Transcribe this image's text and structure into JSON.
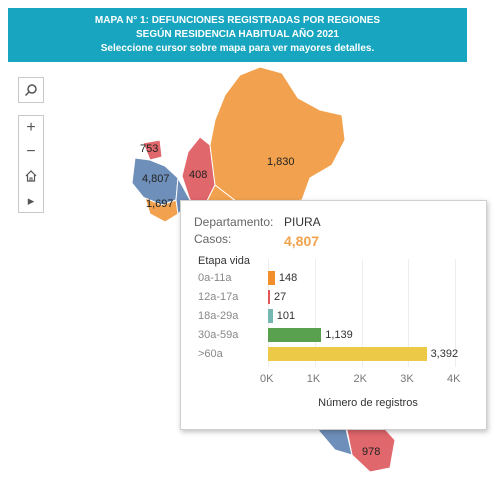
{
  "header": {
    "line1": "MAPA N° 1:  DEFUNCIONES REGISTRADAS  POR REGIONES",
    "line2": "SEGÚN RESIDENCIA HABITUAL  AÑO 2021",
    "line3": "Seleccione cursor sobre mapa para ver mayores detalles."
  },
  "toolbar": {
    "search_icon": "search-icon",
    "zoom_in_icon": "plus-icon",
    "zoom_out_icon": "minus-icon",
    "home_icon": "home-icon",
    "play_icon": "play-icon",
    "zoom_in": "+",
    "zoom_out": "−",
    "play": "▸"
  },
  "map": {
    "labels": [
      "753",
      "4,807",
      "1,697",
      "408",
      "1,830",
      "978"
    ],
    "colors": {
      "orange": "#f2a24e",
      "blue": "#6e8fba",
      "red": "#e0676c"
    }
  },
  "tooltip": {
    "dept_label": "Departamento:",
    "dept_value": "PIURA",
    "cases_label": "Casos:",
    "cases_value": "4,807",
    "subtitle": "Etapa vida"
  },
  "chart_data": {
    "type": "bar",
    "orientation": "horizontal",
    "categories": [
      "0a-11a",
      "12a-17a",
      "18a-29a",
      "30a-59a",
      ">60a"
    ],
    "values": [
      148,
      27,
      101,
      1139,
      3392
    ],
    "value_labels": [
      "148",
      "27",
      "101",
      "1,139",
      "3,392"
    ],
    "colors": [
      "#f28e2b",
      "#e15759",
      "#76b7b2",
      "#59a14f",
      "#edc948"
    ],
    "xticks": [
      "0K",
      "1K",
      "2K",
      "3K",
      "4K"
    ],
    "xlim": [
      0,
      4000
    ],
    "xlabel": "Número de registros"
  }
}
